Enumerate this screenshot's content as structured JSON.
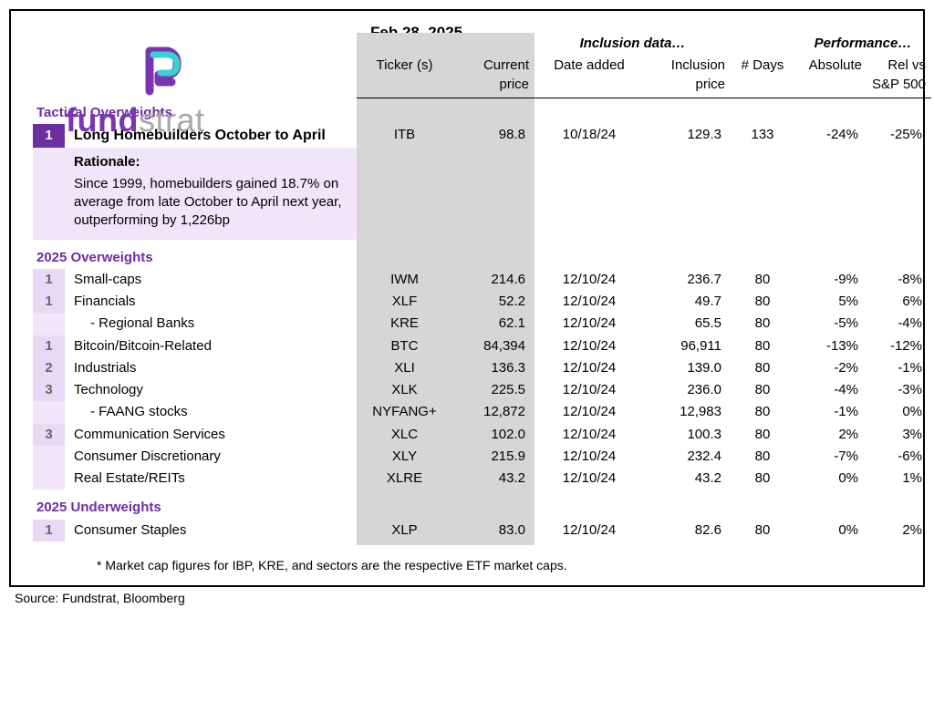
{
  "date": "Feb 28, 2025",
  "logo": {
    "fund": "fund",
    "strat": "strat"
  },
  "colors": {
    "purple": "#6b2fa0",
    "pale_purple": "#f0e5f9",
    "rank_light": "#e9d9f4",
    "grey_shade": "#d6d6d6",
    "logo_teal": "#3ad1d1"
  },
  "header_groups": {
    "inclusion": "Inclusion data…",
    "performance": "Performance…"
  },
  "headers": {
    "ticker": "Ticker (s)",
    "price": "Current price",
    "date_added": "Date added",
    "incl_price": "Inclusion price",
    "days": "# Days",
    "absolute": "Absolute",
    "rel": "Rel vs S&P 500"
  },
  "sections": {
    "tactical": "Tactical Overweights",
    "over2025": "2025 Overweights",
    "under2025": "2025 Underweights"
  },
  "tactical": {
    "rank": "1",
    "name": "Long Homebuilders October to April",
    "ticker": "ITB",
    "price": "98.8",
    "date_added": "10/18/24",
    "incl_price": "129.3",
    "days": "133",
    "absolute": "-24%",
    "rel": "-25%",
    "rationale_label": "Rationale:",
    "rationale": "Since 1999, homebuilders gained 18.7% on average from late October to April next year, outperforming by 1,226bp"
  },
  "over2025": [
    {
      "rank": "1",
      "name": "Small-caps",
      "ticker": "IWM",
      "price": "214.6",
      "date_added": "12/10/24",
      "incl_price": "236.7",
      "days": "80",
      "absolute": "-9%",
      "rel": "-8%"
    },
    {
      "rank": "1",
      "name": "Financials",
      "ticker": "XLF",
      "price": "52.2",
      "date_added": "12/10/24",
      "incl_price": "49.7",
      "days": "80",
      "absolute": "5%",
      "rel": "6%"
    },
    {
      "rank": "",
      "name": "- Regional Banks",
      "indent": true,
      "ticker": "KRE",
      "price": "62.1",
      "date_added": "12/10/24",
      "incl_price": "65.5",
      "days": "80",
      "absolute": "-5%",
      "rel": "-4%"
    },
    {
      "rank": "1",
      "name": "Bitcoin/Bitcoin-Related",
      "ticker": "BTC",
      "price": "84,394",
      "date_added": "12/10/24",
      "incl_price": "96,911",
      "days": "80",
      "absolute": "-13%",
      "rel": "-12%"
    },
    {
      "rank": "2",
      "name": "Industrials",
      "ticker": "XLI",
      "price": "136.3",
      "date_added": "12/10/24",
      "incl_price": "139.0",
      "days": "80",
      "absolute": "-2%",
      "rel": "-1%"
    },
    {
      "rank": "3",
      "name": "Technology",
      "ticker": "XLK",
      "price": "225.5",
      "date_added": "12/10/24",
      "incl_price": "236.0",
      "days": "80",
      "absolute": "-4%",
      "rel": "-3%"
    },
    {
      "rank": "",
      "name": "- FAANG stocks",
      "indent": true,
      "ticker": "NYFANG+",
      "price": "12,872",
      "date_added": "12/10/24",
      "incl_price": "12,983",
      "days": "80",
      "absolute": "-1%",
      "rel": "0%"
    },
    {
      "rank": "3",
      "name": "Communication Services",
      "ticker": "XLC",
      "price": "102.0",
      "date_added": "12/10/24",
      "incl_price": "100.3",
      "days": "80",
      "absolute": "2%",
      "rel": "3%"
    },
    {
      "rank": "",
      "name": "Consumer Discretionary",
      "ticker": "XLY",
      "price": "215.9",
      "date_added": "12/10/24",
      "incl_price": "232.4",
      "days": "80",
      "absolute": "-7%",
      "rel": "-6%"
    },
    {
      "rank": "",
      "name": "Real Estate/REITs",
      "ticker": "XLRE",
      "price": "43.2",
      "date_added": "12/10/24",
      "incl_price": "43.2",
      "days": "80",
      "absolute": "0%",
      "rel": "1%"
    }
  ],
  "under2025": [
    {
      "rank": "1",
      "name": "Consumer Staples",
      "ticker": "XLP",
      "price": "83.0",
      "date_added": "12/10/24",
      "incl_price": "82.6",
      "days": "80",
      "absolute": "0%",
      "rel": "2%"
    }
  ],
  "footnote": "* Market cap figures for IBP, KRE, and sectors are the respective ETF market caps.",
  "source": "Source: Fundstrat, Bloomberg"
}
